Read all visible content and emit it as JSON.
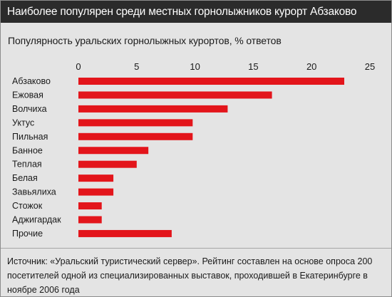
{
  "headline": "Наиболее популярен среди местных горнолыжников курорт Абзаково",
  "subtitle": "Популярность уральских горнолыжных курортов, % ответов",
  "source": "Источник: «Уральский туристический сервер». Рейтинг составлен на основе опроса 200 посетителей одной из специализированных выставок, проходившей в Екатеринбурге в ноябре 2006 года",
  "colors": {
    "bar": "#e3151b",
    "header_bg": "#2b2b2b",
    "panel_bg": "#e4e4e4"
  },
  "chart_data": {
    "type": "bar",
    "orientation": "horizontal",
    "categories": [
      "Абзаково",
      "Ежовая",
      "Волчиха",
      "Уктус",
      "Пильная",
      "Банное",
      "Теплая",
      "Белая",
      "Завьялиха",
      "Стожок",
      "Аджигардак",
      "Прочие"
    ],
    "values": [
      22.8,
      16.6,
      12.8,
      9.8,
      9.8,
      6,
      5,
      3,
      3,
      2,
      2,
      8
    ],
    "xlim": [
      0,
      25
    ],
    "xticks": [
      "0",
      "5",
      "10",
      "15",
      "20",
      "25"
    ],
    "xtick_values": [
      0,
      5,
      10,
      15,
      20,
      25
    ],
    "xticks_position": "top",
    "grid": false,
    "legend": "none"
  }
}
